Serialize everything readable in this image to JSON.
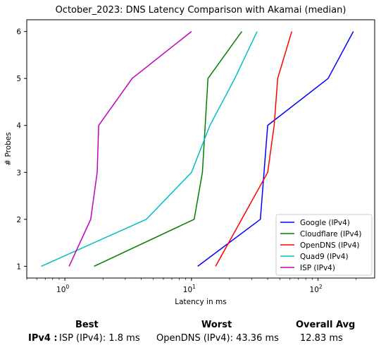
{
  "chart_data": {
    "type": "line",
    "title": "October_2023: DNS Latency Comparison with Akamai (median)",
    "xlabel": "Latency in ms",
    "ylabel": "# Probes",
    "xscale": "log",
    "xlim": [
      0.5,
      280
    ],
    "ylim": [
      0.75,
      6.25
    ],
    "x_ticks": [
      {
        "value": 1,
        "base": "10",
        "exp": "0"
      },
      {
        "value": 10,
        "base": "10",
        "exp": "1"
      },
      {
        "value": 100,
        "base": "10",
        "exp": "2"
      }
    ],
    "y_ticks": [
      "1",
      "2",
      "3",
      "4",
      "5",
      "6"
    ],
    "legend_position": "lower right",
    "series": [
      {
        "name": "Google (IPv4)",
        "color": "#0000ff",
        "points": [
          [
            11.2,
            1
          ],
          [
            35,
            2
          ],
          [
            40,
            4
          ],
          [
            120,
            5
          ],
          [
            190,
            6
          ]
        ]
      },
      {
        "name": "Cloudflare (IPv4)",
        "color": "#008000",
        "points": [
          [
            1.7,
            1
          ],
          [
            10.5,
            2
          ],
          [
            12.2,
            3
          ],
          [
            13.5,
            5
          ],
          [
            25,
            6
          ]
        ]
      },
      {
        "name": "OpenDNS (IPv4)",
        "color": "#ff0000",
        "points": [
          [
            15.5,
            1
          ],
          [
            40,
            3
          ],
          [
            45,
            4
          ],
          [
            48,
            5
          ],
          [
            62,
            6
          ]
        ]
      },
      {
        "name": "Quad9 (IPv4)",
        "color": "#00bfbf",
        "points": [
          [
            0.65,
            1
          ],
          [
            4.4,
            2
          ],
          [
            10,
            3
          ],
          [
            14,
            4
          ],
          [
            22,
            5
          ],
          [
            33,
            6
          ]
        ]
      },
      {
        "name": "ISP (IPv4)",
        "color": "#bf00bf",
        "points": [
          [
            1.08,
            1
          ],
          [
            1.6,
            2
          ],
          [
            1.8,
            3
          ],
          [
            1.85,
            4
          ],
          [
            3.4,
            5
          ],
          [
            10,
            6
          ]
        ]
      }
    ]
  },
  "stats": {
    "headers": {
      "best": "Best",
      "worst": "Worst",
      "avg": "Overall Avg"
    },
    "row_label": "IPv4 :",
    "best": "ISP (IPv4): 1.8 ms",
    "worst": "OpenDNS (IPv4): 43.36 ms",
    "avg": "12.83 ms"
  }
}
